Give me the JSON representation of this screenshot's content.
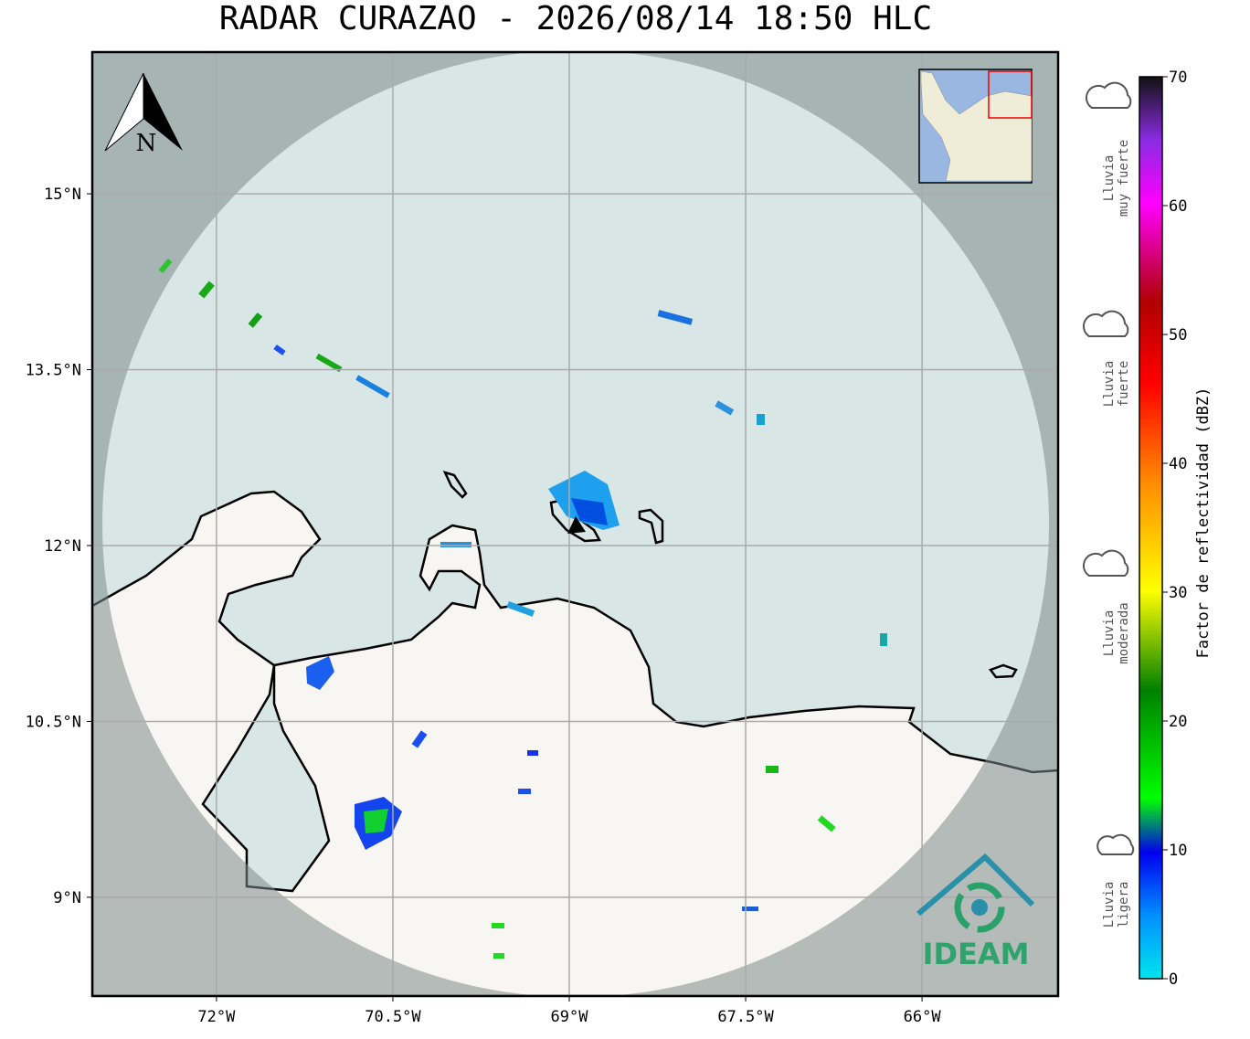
{
  "title": "RADAR CURAZAO - 2026/08/14 18:50 HLC",
  "north_label": "N",
  "lon_ticks": [
    {
      "value": -72,
      "label": "72°W"
    },
    {
      "value": -70.5,
      "label": "70.5°W"
    },
    {
      "value": -69,
      "label": "69°W"
    },
    {
      "value": -67.5,
      "label": "67.5°W"
    },
    {
      "value": -66,
      "label": "66°W"
    }
  ],
  "lat_ticks": [
    {
      "value": 15,
      "label": "15°N"
    },
    {
      "value": 13.5,
      "label": "13.5°N"
    },
    {
      "value": 12,
      "label": "12°N"
    },
    {
      "value": 10.5,
      "label": "10.5°N"
    },
    {
      "value": 9,
      "label": "9°N"
    }
  ],
  "colorbar": {
    "label": "Factor de reflectividad (dBZ)",
    "range": [
      0,
      70
    ],
    "ticks": [
      0,
      10,
      20,
      30,
      40,
      50,
      60,
      70
    ]
  },
  "rain_labels": [
    [
      "Lluvia",
      "muy fuerte"
    ],
    [
      "Lluvia",
      "fuerte"
    ],
    [
      "Lluvia",
      "moderada"
    ],
    [
      "Lluvia",
      "ligera"
    ]
  ],
  "logo": "IDEAM"
}
